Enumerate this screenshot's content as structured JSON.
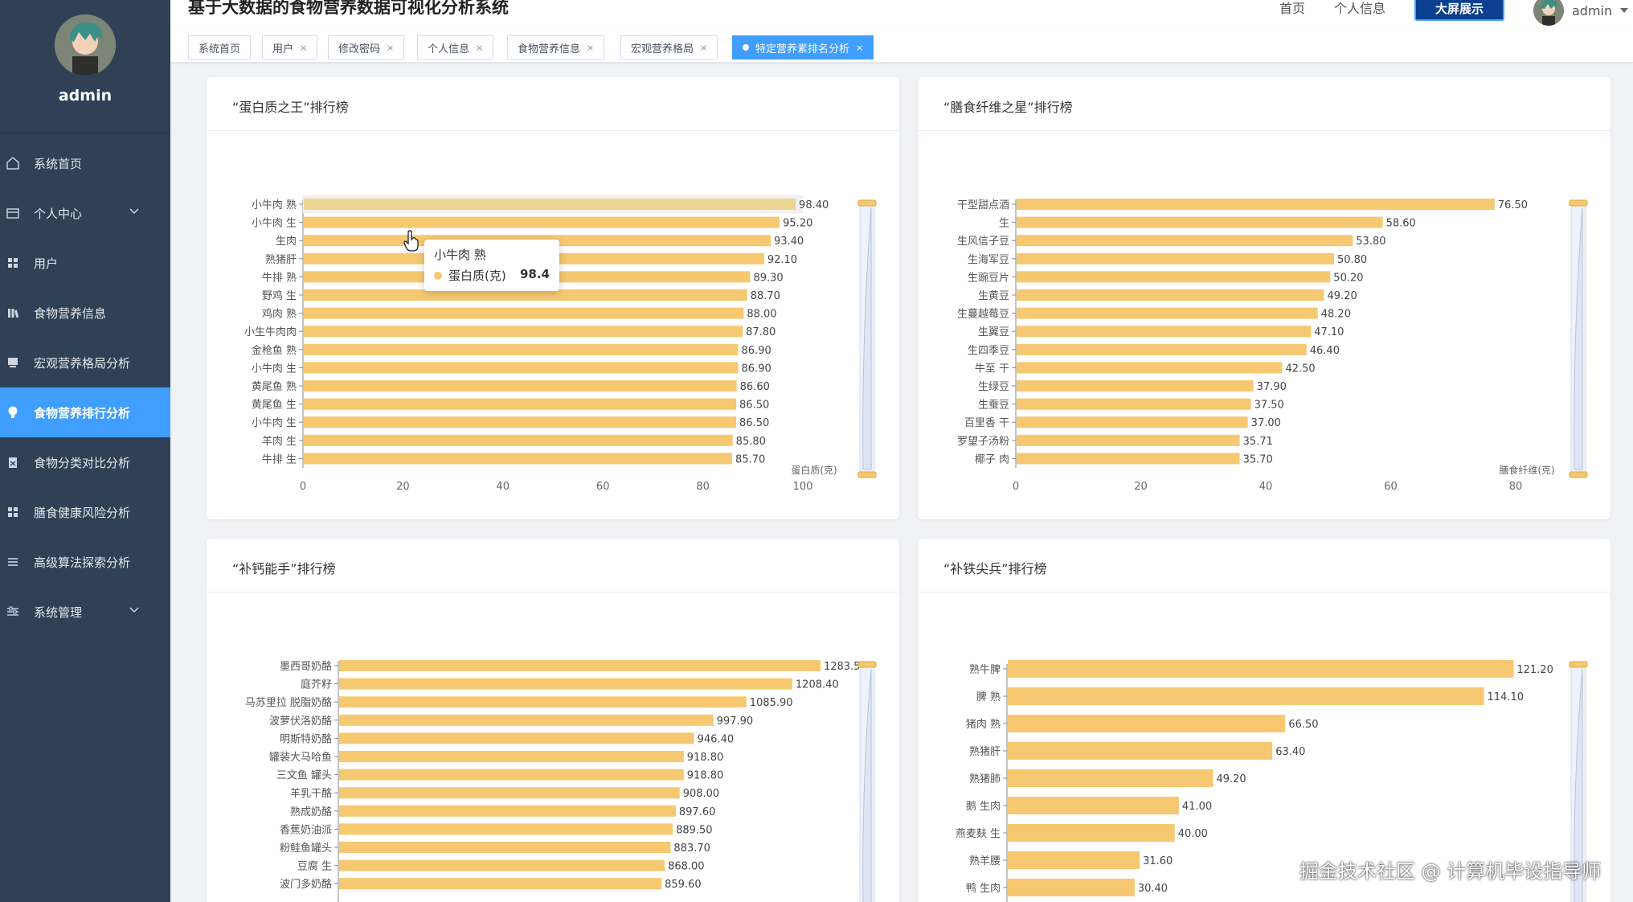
{
  "app": {
    "title": "基于大数据的食物营养数据可视化分析系统"
  },
  "header": {
    "nav": [
      "首页",
      "个人信息"
    ],
    "big_screen_label": "大屏展示",
    "user_name": "admin"
  },
  "sidebar": {
    "username": "admin",
    "items": [
      {
        "label": "系统首页",
        "icon": "home-icon"
      },
      {
        "label": "个人中心",
        "icon": "card-icon",
        "expandable": true
      },
      {
        "label": "用户",
        "icon": "grid-icon"
      },
      {
        "label": "食物营养信息",
        "icon": "bar-icon"
      },
      {
        "label": "宏观营养格局分析",
        "icon": "monitor-icon"
      },
      {
        "label": "食物营养排行分析",
        "icon": "bulb-icon",
        "active": true
      },
      {
        "label": "食物分类对比分析",
        "icon": "clipboard-icon"
      },
      {
        "label": "膳食健康风险分析",
        "icon": "grid-icon"
      },
      {
        "label": "高级算法探索分析",
        "icon": "list-icon"
      },
      {
        "label": "系统管理",
        "icon": "sliders-icon",
        "expandable": true
      }
    ]
  },
  "tabs": [
    {
      "label": "系统首页",
      "closable": false
    },
    {
      "label": "用户",
      "closable": true
    },
    {
      "label": "修改密码",
      "closable": true
    },
    {
      "label": "个人信息",
      "closable": true
    },
    {
      "label": "食物营养信息",
      "closable": true
    },
    {
      "label": "宏观营养格局",
      "closable": true
    },
    {
      "label": "特定营养素排名分析",
      "closable": true,
      "active": true
    }
  ],
  "tooltip": {
    "title": "小牛肉 熟",
    "series": "蛋白质(克)",
    "value": "98.4"
  },
  "watermark": "掘金技术社区 @ 计算机毕设指导师",
  "colors": {
    "bar": "#f5c871",
    "bar_highlight": "#ecd493",
    "sidebar": "#304156",
    "accent": "#409eff"
  },
  "chart_data": [
    {
      "type": "bar",
      "orientation": "horizontal",
      "title": "“蛋白质之王”排行榜",
      "xlabel": "蛋白质(克)",
      "xlim": [
        0,
        100
      ],
      "ticks": [
        0,
        20,
        40,
        60,
        80,
        100
      ],
      "categories": [
        "小牛肉 熟",
        "小牛肉 生",
        "生肉",
        "熟猪肝",
        "牛排 熟",
        "野鸡 生",
        "鸡肉 熟",
        "小生牛肉肉",
        "金枪鱼 熟",
        "小牛肉 生",
        "黄尾鱼 熟",
        "黄尾鱼 生",
        "小牛肉 生",
        "羊肉 生",
        "牛排 生"
      ],
      "values": [
        98.4,
        95.2,
        93.4,
        92.1,
        89.3,
        88.7,
        88.0,
        87.8,
        86.9,
        86.9,
        86.6,
        86.5,
        86.5,
        85.8,
        85.7
      ],
      "labels": [
        "98.40",
        "95.20",
        "93.40",
        "92.10",
        "89.30",
        "88.70",
        "88.00",
        "87.80",
        "86.90",
        "86.90",
        "86.60",
        "86.50",
        "86.50",
        "85.80",
        "85.70"
      ]
    },
    {
      "type": "bar",
      "orientation": "horizontal",
      "title": "“膳食纤维之星”排行榜",
      "xlabel": "膳食纤维(克)",
      "xlim": [
        0,
        80
      ],
      "ticks": [
        0,
        20,
        40,
        60,
        80
      ],
      "categories": [
        "干型甜点酒",
        "生",
        "生风信子豆",
        "生海军豆",
        "生豌豆片",
        "生黄豆",
        "生蔓越莓豆",
        "生翼豆",
        "生四季豆",
        "牛至 干",
        "生绿豆",
        "生蚕豆",
        "百里香 干",
        "罗望子汤粉",
        "椰子 肉"
      ],
      "values": [
        76.5,
        58.6,
        53.8,
        50.8,
        50.2,
        49.2,
        48.2,
        47.1,
        46.4,
        42.5,
        37.9,
        37.5,
        37.0,
        35.71,
        35.7
      ],
      "labels": [
        "76.50",
        "58.60",
        "53.80",
        "50.80",
        "50.20",
        "49.20",
        "48.20",
        "47.10",
        "46.40",
        "42.50",
        "37.90",
        "37.50",
        "37.00",
        "35.71",
        "35.70"
      ]
    },
    {
      "type": "bar",
      "orientation": "horizontal",
      "title": "“补钙能手”排行榜",
      "xmax": 1500,
      "categories": [
        "墨西哥奶酪",
        "庭芥籽",
        "马苏里拉 脱脂奶酪",
        "波萝伏洛奶酪",
        "明斯特奶酪",
        "罐装大马哈鱼",
        "三文鱼 罐头",
        "羊乳干酪",
        "熟成奶酪",
        "香蕉奶油派",
        "粉鲑鱼罐头",
        "豆腐 生",
        "波门多奶酪"
      ],
      "values": [
        1283.5,
        1208.4,
        1085.9,
        997.9,
        946.4,
        918.8,
        918.8,
        908.0,
        897.6,
        889.5,
        883.7,
        868.0,
        859.6
      ],
      "labels": [
        "1283.50",
        "1208.40",
        "1085.90",
        "997.90",
        "946.40",
        "918.80",
        "918.80",
        "908.00",
        "897.60",
        "889.50",
        "883.70",
        "868.00",
        "859.60"
      ]
    },
    {
      "type": "bar",
      "orientation": "horizontal",
      "title": "“补铁尖兵”排行榜",
      "xmax": 140,
      "categories": [
        "熟牛脾",
        "脾 熟",
        "猪肉 熟",
        "熟猪肝",
        "熟猪肺",
        "鹅 生肉",
        "燕麦麸 生",
        "熟羊腰",
        "鸭 生肉"
      ],
      "values": [
        121.2,
        114.1,
        66.5,
        63.4,
        49.2,
        41.0,
        40.0,
        31.6,
        30.4
      ],
      "labels": [
        "121.20",
        "114.10",
        "66.50",
        "63.40",
        "49.20",
        "41.00",
        "40.00",
        "31.60",
        "30.40"
      ]
    }
  ]
}
